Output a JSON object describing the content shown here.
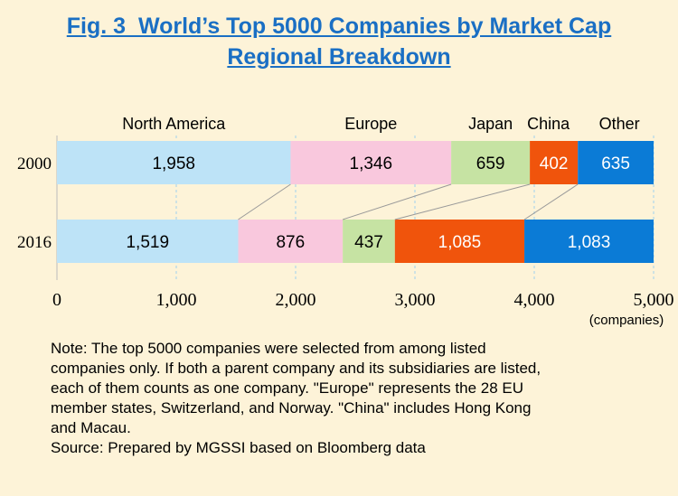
{
  "title_lines": [
    "Fig. 3  World’s Top 5000 Companies by Market Cap",
    "Regional Breakdown"
  ],
  "note_lines": [
    "Note: The top 5000 companies were selected from among listed",
    "companies only. If both a parent company and its subsidiaries are listed,",
    "each of them counts as one company. \"Europe\" represents the 28 EU",
    "member states, Switzerland, and Norway. \"China\" includes Hong Kong",
    "and Macau.",
    "Source: Prepared by MGSSI based on Bloomberg data"
  ],
  "chart_data": {
    "type": "bar",
    "orientation": "horizontal",
    "stacked": true,
    "categories": [
      "2000",
      "2016"
    ],
    "series": [
      {
        "name": "North America",
        "values": [
          1958,
          1519
        ],
        "color": "#bde3f7"
      },
      {
        "name": "Europe",
        "values": [
          1346,
          876
        ],
        "color": "#f9c8dd"
      },
      {
        "name": "Japan",
        "values": [
          659,
          437
        ],
        "color": "#c6e3a3"
      },
      {
        "name": "China",
        "values": [
          402,
          1085
        ],
        "color": "#f0540c"
      },
      {
        "name": "Other",
        "values": [
          635,
          1083
        ],
        "color": "#0b7bd6"
      }
    ],
    "data_labels": [
      [
        "1,958",
        "1,346",
        "659",
        "402",
        "635"
      ],
      [
        "1,519",
        "876",
        "437",
        "1,085",
        "1,083"
      ]
    ],
    "xlim": [
      0,
      5000
    ],
    "xticks": [
      0,
      1000,
      2000,
      3000,
      4000,
      5000
    ],
    "xtick_labels": [
      "0",
      "1,000",
      "2,000",
      "3,000",
      "4,000",
      "5,000"
    ],
    "x_unit_label": "(companies)",
    "legend_placement": "top",
    "grid": "vertical dashed"
  }
}
